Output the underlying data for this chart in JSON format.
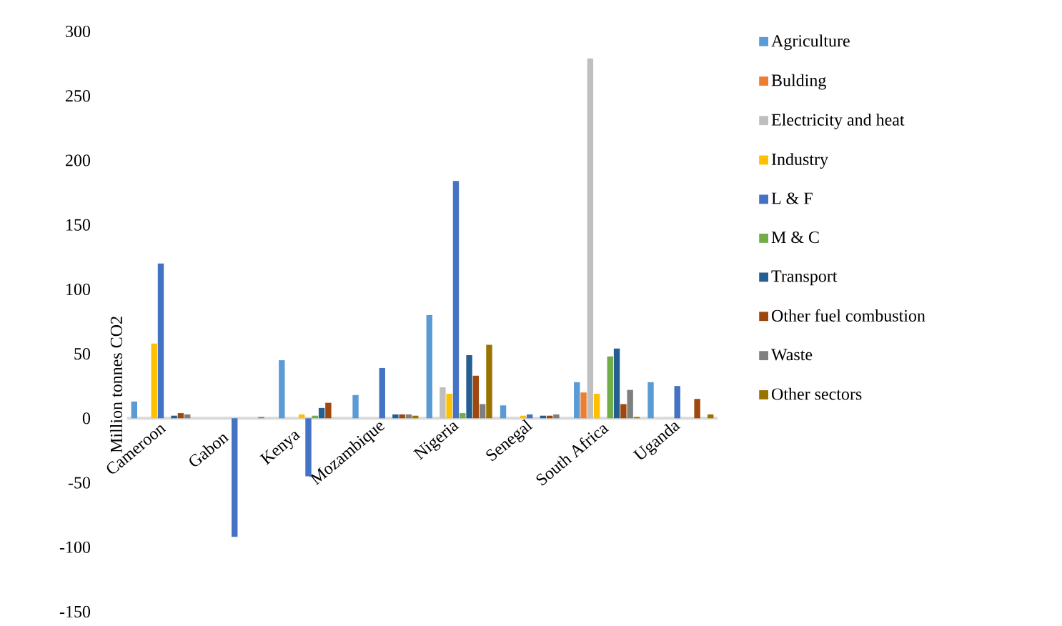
{
  "chart_data": {
    "type": "bar",
    "ylabel": "Million tonnes CO2",
    "categories": [
      "Cameroon",
      "Gabon",
      "Kenya",
      "Mozambique",
      "Nigeria",
      "Senegal",
      "South Africa",
      "Uganda"
    ],
    "ylim": [
      -150,
      300
    ],
    "yticks": [
      -150,
      -100,
      -50,
      0,
      50,
      100,
      150,
      200,
      250,
      300
    ],
    "legend": "right",
    "series": [
      {
        "name": "Agriculture",
        "color": "#5b9bd5",
        "values": [
          13,
          null,
          45,
          18,
          80,
          10,
          28,
          28
        ]
      },
      {
        "name": "Bulding",
        "color": "#ed7d31",
        "values": [
          null,
          null,
          null,
          null,
          null,
          null,
          20,
          null
        ]
      },
      {
        "name": "Electricity and heat",
        "color": "#bfbfbf",
        "values": [
          null,
          null,
          null,
          null,
          24,
          null,
          279,
          null
        ]
      },
      {
        "name": "Industry",
        "color": "#ffc000",
        "values": [
          58,
          null,
          3,
          null,
          19,
          2,
          19,
          null
        ]
      },
      {
        "name": "L & F",
        "color": "#4472c4",
        "values": [
          120,
          -92,
          -45,
          39,
          184,
          3,
          null,
          25
        ]
      },
      {
        "name": "M & C",
        "color": "#70ad47",
        "values": [
          null,
          null,
          2,
          null,
          4,
          null,
          48,
          null
        ]
      },
      {
        "name": "Transport",
        "color": "#255e91",
        "values": [
          2,
          null,
          8,
          3,
          49,
          2,
          54,
          null
        ]
      },
      {
        "name": "Other fuel combustion",
        "color": "#9e480e",
        "values": [
          4,
          null,
          12,
          3,
          33,
          2,
          11,
          15
        ]
      },
      {
        "name": "Waste",
        "color": "#7f7f7f",
        "values": [
          3,
          1,
          null,
          3,
          11,
          3,
          22,
          null
        ]
      },
      {
        "name": "Other sectors",
        "color": "#997300",
        "values": [
          null,
          null,
          null,
          2,
          57,
          null,
          1,
          3
        ]
      }
    ]
  }
}
